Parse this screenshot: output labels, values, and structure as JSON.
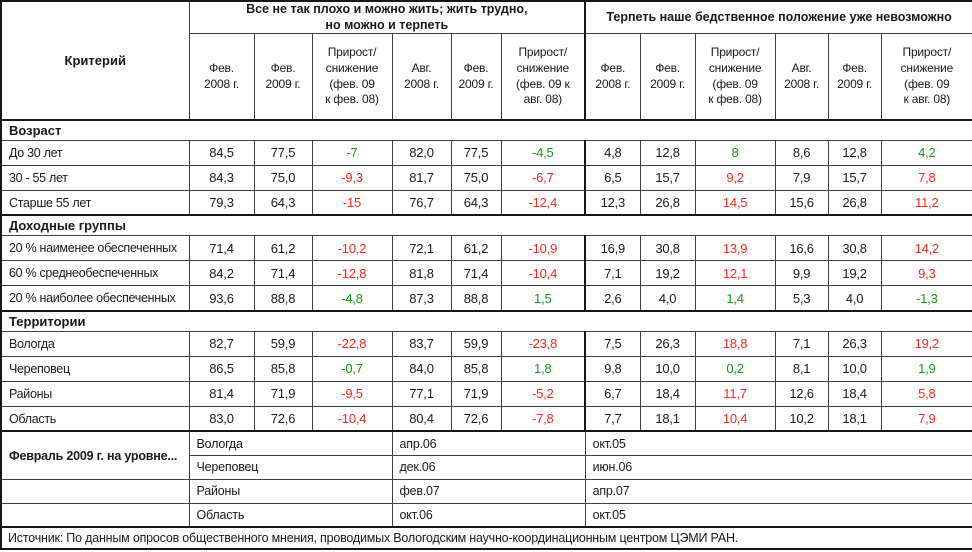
{
  "colors": {
    "positive_change_green": "#149a14",
    "negative_change_red": "#f8291c",
    "text": "#1a1a1a",
    "grid": "#3f3f3f"
  },
  "table": {
    "criterion_header": "Критерий",
    "group_titles": [
      "Все не так плохо и можно жить; жить трудно,\nно можно и терпеть",
      "Терпеть наше бедственное положение уже невозможно"
    ],
    "sub_headers": [
      "Фев.\n2008 г.",
      "Фев.\n2009 г.",
      "Прирост/\nснижение\n(фев. 09\nк фев. 08)",
      "Авг.\n2008 г.",
      "Фев.\n2009 г.",
      "Прирост/\nснижение\n(фев. 09 к\nавг. 08)",
      "Фев.\n2008 г.",
      "Фев.\n2009 г.",
      "Прирост/\nснижение\n(фев. 09\nк фев. 08)",
      "Авг.\n2008 г.",
      "Фев.\n2009 г.",
      "Прирост/\nснижение\n(фев. 09\nк авг. 08)"
    ],
    "change_column_indexes": [
      2,
      5,
      8,
      11
    ],
    "sections": [
      {
        "title": "Возраст",
        "rows": [
          {
            "label": "До 30 лет",
            "values": [
              "84,5",
              "77,5",
              "-7",
              "82,0",
              "77,5",
              "-4,5",
              "4,8",
              "12,8",
              "8",
              "8,6",
              "12,8",
              "4,2"
            ],
            "change_colors": [
              "green",
              "green",
              "green",
              "green"
            ]
          },
          {
            "label": "30 - 55 лет",
            "values": [
              "84,3",
              "75,0",
              "-9,3",
              "81,7",
              "75,0",
              "-6,7",
              "6,5",
              "15,7",
              "9,2",
              "7,9",
              "15,7",
              "7,8"
            ],
            "change_colors": [
              "red",
              "red",
              "red",
              "red"
            ]
          },
          {
            "label": "Старше 55 лет",
            "values": [
              "79,3",
              "64,3",
              "-15",
              "76,7",
              "64,3",
              "-12,4",
              "12,3",
              "26,8",
              "14,5",
              "15,6",
              "26,8",
              "11,2"
            ],
            "change_colors": [
              "red",
              "red",
              "red",
              "red"
            ]
          }
        ]
      },
      {
        "title": "Доходные группы",
        "rows": [
          {
            "label": "20 % наименее обеспеченных",
            "values": [
              "71,4",
              "61,2",
              "-10,2",
              "72,1",
              "61,2",
              "-10,9",
              "16,9",
              "30,8",
              "13,9",
              "16,6",
              "30,8",
              "14,2"
            ],
            "change_colors": [
              "red",
              "red",
              "red",
              "red"
            ]
          },
          {
            "label": "60 % среднеобеспеченных",
            "values": [
              "84,2",
              "71,4",
              "-12,8",
              "81,8",
              "71,4",
              "-10,4",
              "7,1",
              "19,2",
              "12,1",
              "9,9",
              "19,2",
              "9,3"
            ],
            "change_colors": [
              "red",
              "red",
              "red",
              "red"
            ]
          },
          {
            "label": "20 % наиболее обеспеченных",
            "values": [
              "93,6",
              "88,8",
              "-4,8",
              "87,3",
              "88,8",
              "1,5",
              "2,6",
              "4,0",
              "1,4",
              "5,3",
              "4,0",
              "-1,3"
            ],
            "change_colors": [
              "green",
              "green",
              "green",
              "green"
            ]
          }
        ]
      },
      {
        "title": "Территории",
        "rows": [
          {
            "label": "Вологда",
            "values": [
              "82,7",
              "59,9",
              "-22,8",
              "83,7",
              "59,9",
              "-23,8",
              "7,5",
              "26,3",
              "18,8",
              "7,1",
              "26,3",
              "19,2"
            ],
            "change_colors": [
              "red",
              "red",
              "red",
              "red"
            ]
          },
          {
            "label": "Череповец",
            "values": [
              "86,5",
              "85,8",
              "-0,7",
              "84,0",
              "85,8",
              "1,8",
              "9,8",
              "10,0",
              "0,2",
              "8,1",
              "10,0",
              "1,9"
            ],
            "change_colors": [
              "green",
              "green",
              "green",
              "green"
            ]
          },
          {
            "label": "Районы",
            "values": [
              "81,4",
              "71,9",
              "-9,5",
              "77,1",
              "71,9",
              "-5,2",
              "6,7",
              "18,4",
              "11,7",
              "12,6",
              "18,4",
              "5,8"
            ],
            "change_colors": [
              "red",
              "red",
              "red",
              "red"
            ]
          },
          {
            "label": "Область",
            "values": [
              "83,0",
              "72,6",
              "-10,4",
              "80,4",
              "72,6",
              "-7,8",
              "7,7",
              "18,1",
              "10,4",
              "10,2",
              "18,1",
              "7,9"
            ],
            "change_colors": [
              "red",
              "red",
              "red",
              "red"
            ]
          }
        ]
      }
    ],
    "footer": {
      "label": "Февраль 2009 г. на уровне...",
      "rows": [
        {
          "territory": "Вологда",
          "date1": "апр.06",
          "date2": "окт.05"
        },
        {
          "territory": "Череповец",
          "date1": "дек.06",
          "date2": "июн.06"
        },
        {
          "territory": "Районы",
          "date1": "фев.07",
          "date2": "апр.07"
        },
        {
          "territory": "Область",
          "date1": "окт.06",
          "date2": "окт.05"
        }
      ]
    },
    "source": "Источник: По данным опросов общественного мнения, проводимых Вологодским научно-координационным центром ЦЭМИ РАН."
  }
}
